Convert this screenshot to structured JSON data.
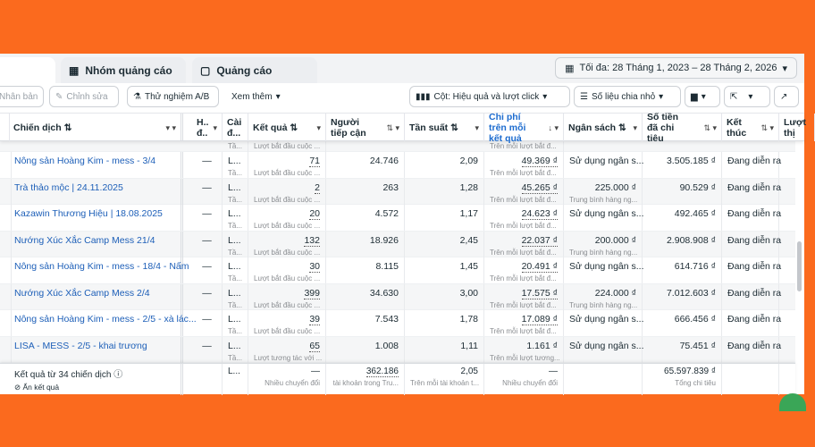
{
  "tabs": [
    {
      "label": ""
    },
    {
      "label": "Nhóm quảng cáo",
      "icon": "ad-set-grid-icon"
    },
    {
      "label": "Quảng cáo",
      "icon": "ad-window-icon"
    }
  ],
  "date_range": "Tối đa: 28 Tháng 1, 2023 – 28 Tháng 2, 2026",
  "toolbar": {
    "duplicate": "Nhân bản",
    "edit": "Chỉnh sửa",
    "ab_test": "Thử nghiệm A/B",
    "more": "Xem thêm",
    "columns": "Cột: Hiệu quả và lượt click",
    "breakdown": "Số liệu chia nhỏ"
  },
  "columns": {
    "campaign": "Chiến dịch",
    "delivery": "H.. đ..",
    "settings": "Cài đ...",
    "results": "Kết quả",
    "reach": "Người tiếp cận",
    "frequency": "Tần suất",
    "cost_per_result": "Chi phí trên mỗi kết quả",
    "budget": "Ngân sách",
    "amount_spent": "Số tiền đã chi tiêu",
    "ends": "Kết thúc",
    "impressions": "Lượt thị"
  },
  "partial_row": {
    "settings_sub": "Tầ...",
    "results_sub": "Lượt bắt đầu cuộc ...",
    "cpr_sub": "Trên mỗi lượt bắt đ..."
  },
  "rows": [
    {
      "name": "Nông sản Hoàng Kim - mess - 3/4",
      "delivery": "—",
      "setting": "L...",
      "setting_sub": "Tầ...",
      "results": "71",
      "results_sub": "Lượt bắt đầu cuộc ...",
      "reach": "24.746",
      "frequency": "2,09",
      "cpr": "49.369 ₫",
      "cpr_sub": "Trên mỗi lượt bắt đ...",
      "budget": "Sử dụng ngân s...",
      "budget_sub": "",
      "spent": "3.505.185 ₫",
      "ends": "Đang diễn ra"
    },
    {
      "name": "Trà thảo mộc | 24.11.2025",
      "delivery": "—",
      "setting": "L...",
      "setting_sub": "Tầ...",
      "results": "2",
      "results_sub": "Lượt bắt đầu cuộc ...",
      "reach": "263",
      "frequency": "1,28",
      "cpr": "45.265 ₫",
      "cpr_sub": "Trên mỗi lượt bắt đ...",
      "budget": "225.000 ₫",
      "budget_sub": "Trung bình hàng ng...",
      "spent": "90.529 ₫",
      "ends": "Đang diễn ra"
    },
    {
      "name": "Kazawin Thương Hiệu | 18.08.2025",
      "delivery": "—",
      "setting": "L...",
      "setting_sub": "Tầ...",
      "results": "20",
      "results_sub": "Lượt bắt đầu cuộc ...",
      "reach": "4.572",
      "frequency": "1,17",
      "cpr": "24.623 ₫",
      "cpr_sub": "Trên mỗi lượt bắt đ...",
      "budget": "Sử dụng ngân s...",
      "budget_sub": "",
      "spent": "492.465 ₫",
      "ends": "Đang diễn ra"
    },
    {
      "name": "Nướng Xúc Xắc Camp Mess 21/4",
      "delivery": "—",
      "setting": "L...",
      "setting_sub": "Tầ...",
      "results": "132",
      "results_sub": "Lượt bắt đầu cuộc ...",
      "reach": "18.926",
      "frequency": "2,45",
      "cpr": "22.037 ₫",
      "cpr_sub": "Trên mỗi lượt bắt đ...",
      "budget": "200.000 ₫",
      "budget_sub": "Trung bình hàng ng...",
      "spent": "2.908.908 ₫",
      "ends": "Đang diễn ra"
    },
    {
      "name": "Nông sản Hoàng Kim - mess - 18/4 - Nấm",
      "delivery": "—",
      "setting": "L...",
      "setting_sub": "Tầ...",
      "results": "30",
      "results_sub": "Lượt bắt đầu cuộc ...",
      "reach": "8.115",
      "frequency": "1,45",
      "cpr": "20.491 ₫",
      "cpr_sub": "Trên mỗi lượt bắt đ...",
      "budget": "Sử dụng ngân s...",
      "budget_sub": "",
      "spent": "614.716 ₫",
      "ends": "Đang diễn ra"
    },
    {
      "name": "Nướng Xúc Xắc Camp Mess 2/4",
      "delivery": "—",
      "setting": "L...",
      "setting_sub": "Tầ...",
      "results": "399",
      "results_sub": "Lượt bắt đầu cuộc ...",
      "reach": "34.630",
      "frequency": "3,00",
      "cpr": "17.575 ₫",
      "cpr_sub": "Trên mỗi lượt bắt đ...",
      "budget": "224.000 ₫",
      "budget_sub": "Trung bình hàng ng...",
      "spent": "7.012.603 ₫",
      "ends": "Đang diễn ra"
    },
    {
      "name": "Nông sản Hoàng Kim - mess - 2/5 - xà lác...",
      "delivery": "—",
      "setting": "L...",
      "setting_sub": "Tầ...",
      "results": "39",
      "results_sub": "Lượt bắt đầu cuộc ...",
      "reach": "7.543",
      "frequency": "1,78",
      "cpr": "17.089 ₫",
      "cpr_sub": "Trên mỗi lượt bắt đ...",
      "budget": "Sử dụng ngân s...",
      "budget_sub": "",
      "spent": "666.456 ₫",
      "ends": "Đang diễn ra"
    },
    {
      "name": "LISA - MESS - 2/5 - khai trương",
      "delivery": "—",
      "setting": "L...",
      "setting_sub": "Tầ...",
      "results": "65",
      "results_sub": "Lượt tương tác với ...",
      "reach": "1.008",
      "frequency": "1,11",
      "cpr": "1.161 ₫",
      "cpr_sub": "Trên mỗi lượt tương...",
      "budget": "Sử dụng ngân s...",
      "budget_sub": "",
      "spent": "75.451 ₫",
      "ends": "Đang diễn ra"
    }
  ],
  "footer": {
    "summary": "Kết quả từ 34 chiến dịch",
    "hide": "Ẩn kết quả",
    "setting": "L...",
    "results": "—",
    "results_sub": "Nhiều chuyển đổi",
    "reach": "362.186",
    "reach_sub": "tài khoản trong Tru...",
    "frequency": "2,05",
    "frequency_sub": "Trên mỗi tài khoản t...",
    "cpr": "—",
    "cpr_sub": "Nhiều chuyển đổi",
    "spent": "65.597.839 ₫",
    "spent_sub": "Tổng chi tiêu"
  },
  "colors": {
    "background": "#fb6a1e",
    "link": "#1d5fb8",
    "sorted_header": "#1d6ccf"
  }
}
